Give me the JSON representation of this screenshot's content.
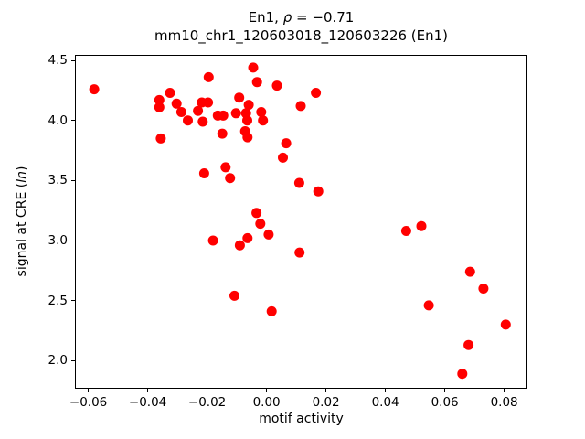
{
  "figure": {
    "title": {
      "prefix": "En1, ",
      "rho": "ρ",
      "rest": " = −0.71"
    },
    "subtitle": "mm10_chr1_120603018_120603226 (En1)",
    "xlabel": "motif activity",
    "ylabel": {
      "prefix": "signal at CRE (",
      "italic": "ln",
      "suffix": ")"
    },
    "background_color": "#ffffff",
    "spine_color": "#000000"
  },
  "chart_data": {
    "type": "scatter",
    "title": "En1, ρ = −0.71",
    "subtitle": "mm10_chr1_120603018_120603226 (En1)",
    "xlabel": "motif activity",
    "ylabel": "signal at CRE (ln)",
    "correlation_rho": -0.71,
    "grid": false,
    "legend": null,
    "xlim": [
      -0.0645,
      0.0878
    ],
    "ylim": [
      1.766,
      4.546
    ],
    "xticks": [
      -0.06,
      -0.04,
      -0.02,
      0.0,
      0.02,
      0.04,
      0.06,
      0.08
    ],
    "xtick_labels": [
      "−0.06",
      "−0.04",
      "−0.02",
      "0.00",
      "0.02",
      "0.04",
      "0.06",
      "0.08"
    ],
    "yticks": [
      2.0,
      2.5,
      3.0,
      3.5,
      4.0,
      4.5
    ],
    "ytick_labels": [
      "2.0",
      "2.5",
      "3.0",
      "3.5",
      "4.0",
      "4.5"
    ],
    "marker": {
      "shape": "circle",
      "color": "#ff0000",
      "radius_px": 5.5
    },
    "points": [
      [
        -0.058,
        4.26
      ],
      [
        -0.0361,
        4.17
      ],
      [
        -0.0361,
        4.11
      ],
      [
        -0.0356,
        3.85
      ],
      [
        -0.0325,
        4.23
      ],
      [
        -0.0303,
        4.14
      ],
      [
        -0.0287,
        4.07
      ],
      [
        -0.0265,
        4.0
      ],
      [
        -0.0231,
        4.08
      ],
      [
        -0.0218,
        4.15
      ],
      [
        -0.0215,
        3.99
      ],
      [
        -0.021,
        3.56
      ],
      [
        -0.0197,
        4.15
      ],
      [
        -0.0195,
        4.36
      ],
      [
        -0.018,
        3.0
      ],
      [
        -0.0164,
        4.04
      ],
      [
        -0.0149,
        3.89
      ],
      [
        -0.0146,
        4.04
      ],
      [
        -0.0138,
        3.61
      ],
      [
        -0.0123,
        3.52
      ],
      [
        -0.0108,
        2.54
      ],
      [
        -0.0103,
        4.06
      ],
      [
        -0.0092,
        4.19
      ],
      [
        -0.009,
        2.96
      ],
      [
        -0.0072,
        3.91
      ],
      [
        -0.0069,
        4.06
      ],
      [
        -0.0065,
        4.0
      ],
      [
        -0.0064,
        3.86
      ],
      [
        -0.0064,
        3.02
      ],
      [
        -0.006,
        4.13
      ],
      [
        -0.0045,
        4.44
      ],
      [
        -0.0034,
        3.23
      ],
      [
        -0.0032,
        4.32
      ],
      [
        -0.0021,
        3.14
      ],
      [
        -0.0018,
        4.07
      ],
      [
        -0.0012,
        4.0
      ],
      [
        0.0007,
        3.05
      ],
      [
        0.0017,
        2.41
      ],
      [
        0.0035,
        4.29
      ],
      [
        0.0055,
        3.69
      ],
      [
        0.0066,
        3.81
      ],
      [
        0.011,
        3.48
      ],
      [
        0.0111,
        2.9
      ],
      [
        0.0115,
        4.12
      ],
      [
        0.0166,
        4.23
      ],
      [
        0.0174,
        3.41
      ],
      [
        0.047,
        3.08
      ],
      [
        0.0521,
        3.12
      ],
      [
        0.0546,
        2.46
      ],
      [
        0.0659,
        1.89
      ],
      [
        0.068,
        2.13
      ],
      [
        0.0685,
        2.74
      ],
      [
        0.073,
        2.6
      ],
      [
        0.0805,
        2.3
      ]
    ]
  }
}
